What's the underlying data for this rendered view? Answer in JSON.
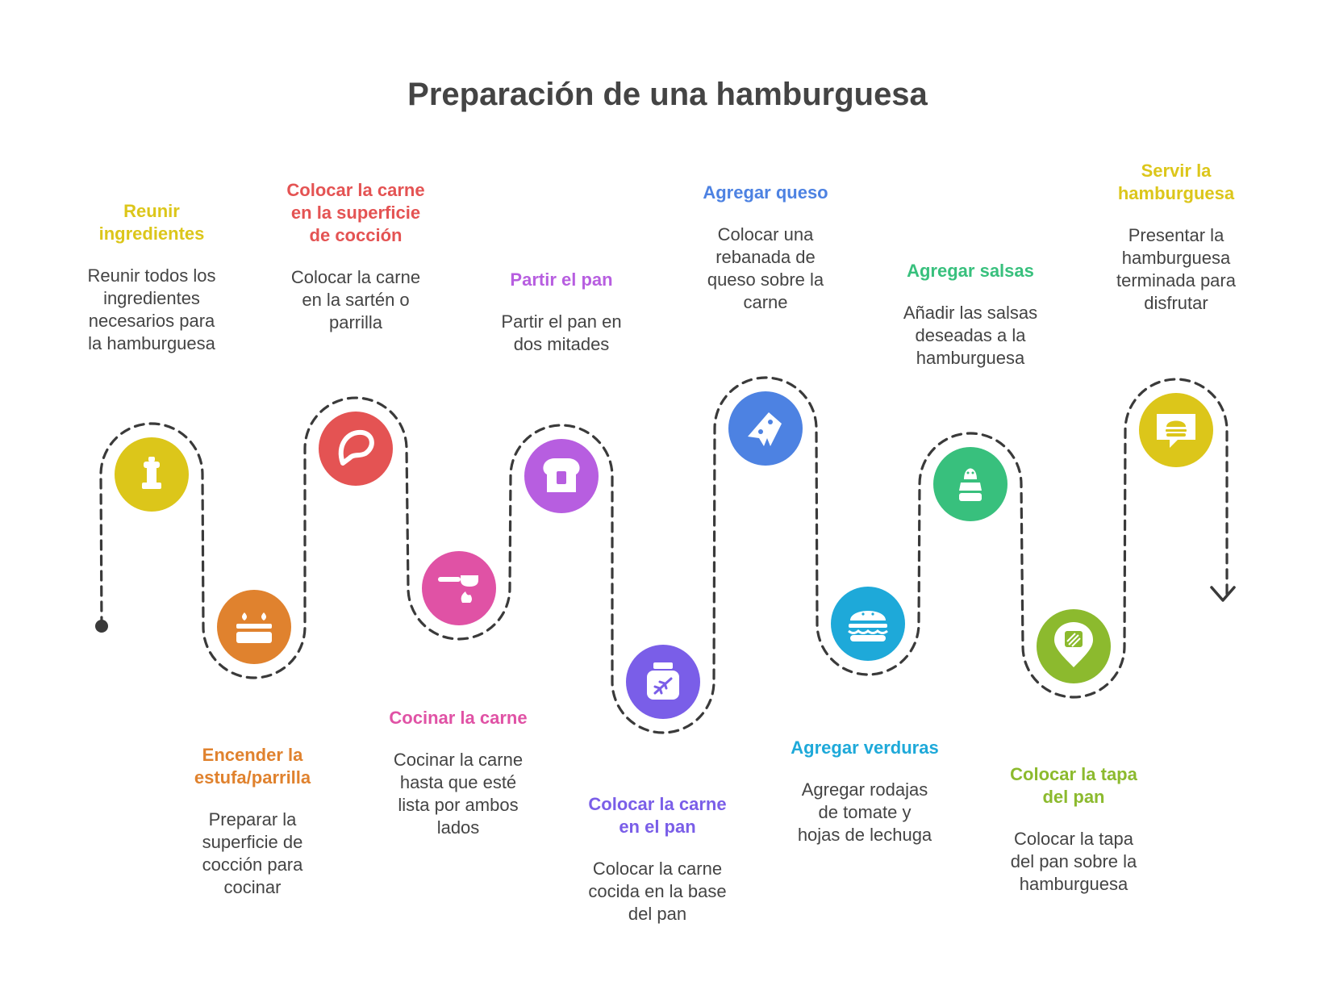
{
  "title": "Preparación de una hamburguesa",
  "steps": [
    {
      "title": "Reunir\ningredientes",
      "description": "Reunir todos los\ningredientes\nnecesarios para\nla hamburguesa",
      "color": "#dcc61a",
      "icon": "pepper-mill-icon"
    },
    {
      "title": "Encender la\nestufa/parrilla",
      "description": "Preparar la\nsuperficie de\ncocción para\ncocinar",
      "color": "#e0822e",
      "icon": "stove-burner-icon"
    },
    {
      "title": "Colocar la carne\nen la superficie\nde cocción",
      "description": "Colocar la carne\nen la sartén o\nparrilla",
      "color": "#e45353",
      "icon": "steak-icon"
    },
    {
      "title": "Cocinar la carne",
      "description": "Cocinar la carne\nhasta que esté\nlista por ambos\nlados",
      "color": "#e052a5",
      "icon": "frying-pan-fire-icon"
    },
    {
      "title": "Partir el pan",
      "description": "Partir el pan en\ndos mitades",
      "color": "#b75ee0",
      "icon": "bread-slice-icon"
    },
    {
      "title": "Colocar la carne\nen el pan",
      "description": "Colocar la carne\ncocida en la base\ndel pan",
      "color": "#7a5ee8",
      "icon": "spice-jar-icon"
    },
    {
      "title": "Agregar queso",
      "description": "Colocar una\nrebanada de\nqueso sobre la\ncarne",
      "color": "#4d82e2",
      "icon": "cheese-slice-icon"
    },
    {
      "title": "Agregar verduras",
      "description": "Agregar rodajas\nde tomate y\nhojas de lechuga",
      "color": "#1ea9d9",
      "icon": "burger-icon"
    },
    {
      "title": "Agregar salsas",
      "description": "Añadir las salsas\ndeseadas a la\nhamburguesa",
      "color": "#38c07d",
      "icon": "salt-shaker-icon"
    },
    {
      "title": "Colocar la tapa\ndel pan",
      "description": "Colocar la tapa\ndel pan sobre la\nhamburguesa",
      "color": "#8cba2e",
      "icon": "toast-pin-icon"
    },
    {
      "title": "Servir la\nhamburguesa",
      "description": "Presentar la\nhamburguesa\nterminada para\ndisfrutar",
      "color": "#dcc61a",
      "icon": "burger-message-icon"
    }
  ]
}
